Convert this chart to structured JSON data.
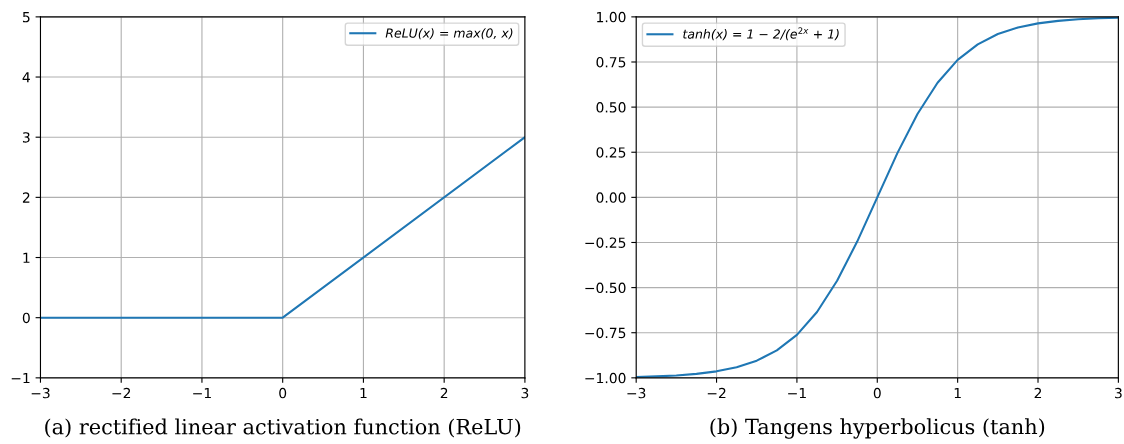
{
  "chart_data": [
    {
      "type": "line",
      "x": [
        -3,
        0,
        3
      ],
      "series": [
        {
          "name": "ReLU(x) = max(0, x)",
          "color": "#1f77b4",
          "values": [
            0,
            0,
            3
          ]
        }
      ],
      "xlim": [
        -3,
        3
      ],
      "ylim": [
        -1,
        5
      ],
      "xticks": [
        -3,
        -2,
        -1,
        0,
        1,
        2,
        3
      ],
      "yticks": [
        -1,
        0,
        1,
        2,
        3,
        4,
        5
      ],
      "grid": true,
      "legend": "top right",
      "annotations": [
        "(a) rectified linear activation function (ReLU)"
      ]
    },
    {
      "type": "line",
      "x": [
        -3,
        -2.75,
        -2.5,
        -2.25,
        -2,
        -1.75,
        -1.5,
        -1.25,
        -1,
        -0.75,
        -0.5,
        -0.25,
        0,
        0.25,
        0.5,
        0.75,
        1,
        1.25,
        1.5,
        1.75,
        2,
        2.25,
        2.5,
        2.75,
        3
      ],
      "series": [
        {
          "name": "tanh(x) = 1 − 2/(e$^{2x}$ + 1)",
          "color": "#1f77b4",
          "values": [
            -0.995,
            -0.992,
            -0.987,
            -0.978,
            -0.964,
            -0.941,
            -0.905,
            -0.848,
            -0.762,
            -0.635,
            -0.462,
            -0.245,
            0,
            0.245,
            0.462,
            0.635,
            0.762,
            0.848,
            0.905,
            0.941,
            0.964,
            0.978,
            0.987,
            0.992,
            0.995
          ]
        }
      ],
      "xlim": [
        -3,
        3
      ],
      "ylim": [
        -1,
        1
      ],
      "xticks": [
        -3,
        -2,
        -1,
        0,
        1,
        2,
        3
      ],
      "yticks": [
        {
          "value": -1,
          "label": "−1.00"
        },
        {
          "value": -0.75,
          "label": "−0.75"
        },
        {
          "value": -0.5,
          "label": "−0.50"
        },
        {
          "value": -0.25,
          "label": "−0.25"
        },
        {
          "value": 0,
          "label": "0.00"
        },
        {
          "value": 0.25,
          "label": "0.25"
        },
        {
          "value": 0.5,
          "label": "0.50"
        },
        {
          "value": 0.75,
          "label": "0.75"
        },
        {
          "value": 1,
          "label": "1.00"
        }
      ],
      "grid": true,
      "legend": "top left",
      "annotations": [
        "(b) Tangens hyperbolicus (tanh)"
      ]
    }
  ]
}
